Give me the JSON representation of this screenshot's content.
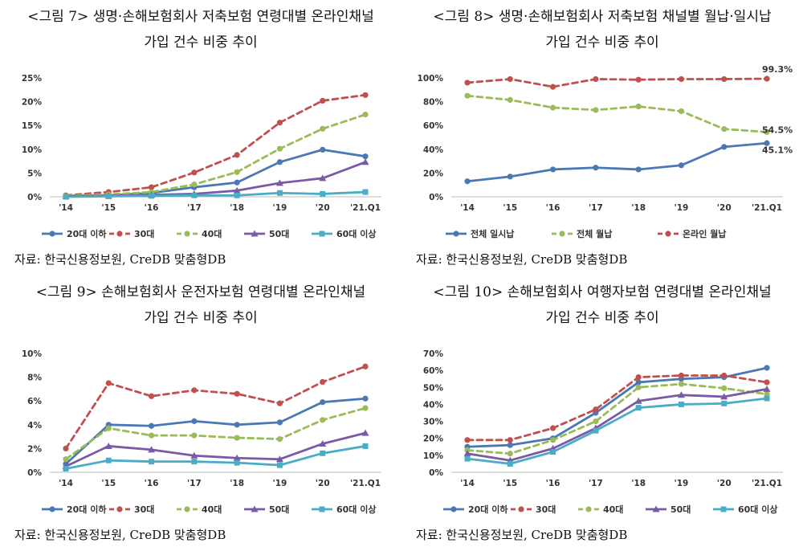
{
  "colors": {
    "blue": "#4a78b5",
    "red": "#c0504d",
    "green": "#9bbb59",
    "purple": "#7a5aa6",
    "teal": "#4bacc6"
  },
  "charts": [
    {
      "title_line1": "<그림 7> 생명·손해보험회사 저축보험 연령대별 온라인채널",
      "title_line2": "가입 건수 비중 추이",
      "source": "자료: 한국신용정보원, CreDB 맞춤형DB"
    },
    {
      "title_line1": "<그림 8> 생명·손해보험회사 저축보험 채널별 월납·일시납",
      "title_line2": "가입 건수 비중 추이",
      "source": "자료: 한국신용정보원, CreDB 맞춤형DB"
    },
    {
      "title_line1": "<그림 9> 손해보험회사 운전자보험 연령대별 온라인채널",
      "title_line2": "가입 건수 비중 추이",
      "source": "자료: 한국신용정보원, CreDB 맞춤형DB"
    },
    {
      "title_line1": "<그림 10> 손해보험회사 여행자보험 연령대별 온라인채널",
      "title_line2": "가입 건수 비중 추이",
      "source": "자료: 한국신용정보원, CreDB 맞춤형DB"
    }
  ],
  "chart_data": [
    {
      "type": "line",
      "title": "<그림 7> 생명·손해보험회사 저축보험 연령대별 온라인채널 가입 건수 비중 추이",
      "categories": [
        "'14",
        "'15",
        "'16",
        "'17",
        "'18",
        "'19",
        "'20",
        "'21.Q1"
      ],
      "ylim": [
        0,
        25
      ],
      "yticks": [
        "0%",
        "5%",
        "10%",
        "15%",
        "20%",
        "25%"
      ],
      "legend": "bottom",
      "series": [
        {
          "name": "20대 이하",
          "color": "blue",
          "style": "solid",
          "marker": "circle",
          "values": [
            0.2,
            0.3,
            0.8,
            2.0,
            3.0,
            7.3,
            9.9,
            8.5
          ]
        },
        {
          "name": "30대",
          "color": "red",
          "style": "dashed",
          "marker": "circle",
          "values": [
            0.3,
            1.0,
            2.0,
            5.1,
            8.8,
            15.6,
            20.2,
            21.4
          ]
        },
        {
          "name": "40대",
          "color": "green",
          "style": "dashed",
          "marker": "circle",
          "values": [
            0.2,
            0.5,
            1.0,
            2.6,
            5.2,
            10.1,
            14.3,
            17.3
          ]
        },
        {
          "name": "50대",
          "color": "purple",
          "style": "solid",
          "marker": "triangle",
          "values": [
            0.1,
            0.2,
            0.4,
            0.6,
            1.3,
            2.9,
            3.9,
            7.3
          ]
        },
        {
          "name": "60대 이상",
          "color": "teal",
          "style": "solid",
          "marker": "square",
          "values": [
            0.0,
            0.1,
            0.2,
            0.3,
            0.3,
            0.8,
            0.6,
            1.0
          ]
        }
      ]
    },
    {
      "type": "line",
      "title": "<그림 8> 생명·손해보험회사 저축보험 채널별 월납·일시납 가입 건수 비중 추이",
      "categories": [
        "'14",
        "'15",
        "'16",
        "'17",
        "'18",
        "'19",
        "'20",
        "'21.Q1"
      ],
      "ylim": [
        0,
        100
      ],
      "yticks": [
        "0%",
        "20%",
        "40%",
        "60%",
        "80%",
        "100%"
      ],
      "legend": "bottom",
      "series": [
        {
          "name": "전체 일시납",
          "color": "blue",
          "style": "solid",
          "marker": "circle",
          "values": [
            13,
            17,
            23,
            24.5,
            23,
            26.5,
            42,
            45.1
          ],
          "end_label": "45.1%"
        },
        {
          "name": "전체 월납",
          "color": "green",
          "style": "dashed",
          "marker": "circle",
          "values": [
            85,
            81.5,
            75,
            73,
            76,
            72,
            57,
            54.5
          ],
          "end_label": "54.5%"
        },
        {
          "name": "온라인 월납",
          "color": "red",
          "style": "dashed",
          "marker": "circle",
          "values": [
            96,
            99,
            92.5,
            99,
            98.5,
            99,
            99,
            99.3
          ],
          "end_label": "99.3%"
        }
      ]
    },
    {
      "type": "line",
      "title": "<그림 9> 손해보험회사 운전자보험 연령대별 온라인채널 가입 건수 비중 추이",
      "categories": [
        "'14",
        "'15",
        "'16",
        "'17",
        "'18",
        "'19",
        "'20",
        "'21.Q1"
      ],
      "ylim": [
        0,
        10
      ],
      "yticks": [
        "0%",
        "2%",
        "4%",
        "6%",
        "8%",
        "10%"
      ],
      "legend": "bottom",
      "series": [
        {
          "name": "20대 이하",
          "color": "blue",
          "style": "solid",
          "marker": "circle",
          "values": [
            0.7,
            4.0,
            3.9,
            4.3,
            4.0,
            4.2,
            5.9,
            6.2
          ]
        },
        {
          "name": "30대",
          "color": "red",
          "style": "dashed",
          "marker": "circle",
          "values": [
            2.0,
            7.5,
            6.4,
            6.9,
            6.6,
            5.8,
            7.6,
            8.9
          ]
        },
        {
          "name": "40대",
          "color": "green",
          "style": "dashed",
          "marker": "circle",
          "values": [
            1.1,
            3.7,
            3.1,
            3.1,
            2.9,
            2.8,
            4.4,
            5.4
          ]
        },
        {
          "name": "50대",
          "color": "purple",
          "style": "solid",
          "marker": "triangle",
          "values": [
            0.5,
            2.2,
            1.9,
            1.4,
            1.2,
            1.1,
            2.4,
            3.3
          ]
        },
        {
          "name": "60대 이상",
          "color": "teal",
          "style": "solid",
          "marker": "square",
          "values": [
            0.3,
            1.0,
            0.9,
            0.9,
            0.8,
            0.6,
            1.6,
            2.2
          ]
        }
      ]
    },
    {
      "type": "line",
      "title": "<그림 10> 손해보험회사 여행자보험 연령대별 온라인채널 가입 건수 비중 추이",
      "categories": [
        "'14",
        "'15",
        "'16",
        "'17",
        "'18",
        "'19",
        "'20",
        "'21.Q1"
      ],
      "ylim": [
        0,
        70
      ],
      "yticks": [
        "0%",
        "10%",
        "20%",
        "30%",
        "40%",
        "50%",
        "60%",
        "70%"
      ],
      "legend": "bottom",
      "series": [
        {
          "name": "20대 이하",
          "color": "blue",
          "style": "solid",
          "marker": "circle",
          "values": [
            15,
            16,
            20,
            35,
            53,
            55,
            56,
            61.5
          ]
        },
        {
          "name": "30대",
          "color": "red",
          "style": "dashed",
          "marker": "circle",
          "values": [
            19,
            19,
            26,
            37,
            56,
            57,
            57,
            53
          ]
        },
        {
          "name": "40대",
          "color": "green",
          "style": "dashed",
          "marker": "circle",
          "values": [
            13,
            11,
            19,
            30,
            50,
            52,
            49.5,
            46
          ]
        },
        {
          "name": "50대",
          "color": "purple",
          "style": "solid",
          "marker": "triangle",
          "values": [
            11,
            7,
            14,
            26,
            42,
            45.5,
            44.5,
            49
          ]
        },
        {
          "name": "60대 이상",
          "color": "teal",
          "style": "solid",
          "marker": "square",
          "values": [
            8,
            5,
            12,
            24.5,
            38,
            40,
            40.5,
            43.5
          ]
        }
      ]
    }
  ]
}
